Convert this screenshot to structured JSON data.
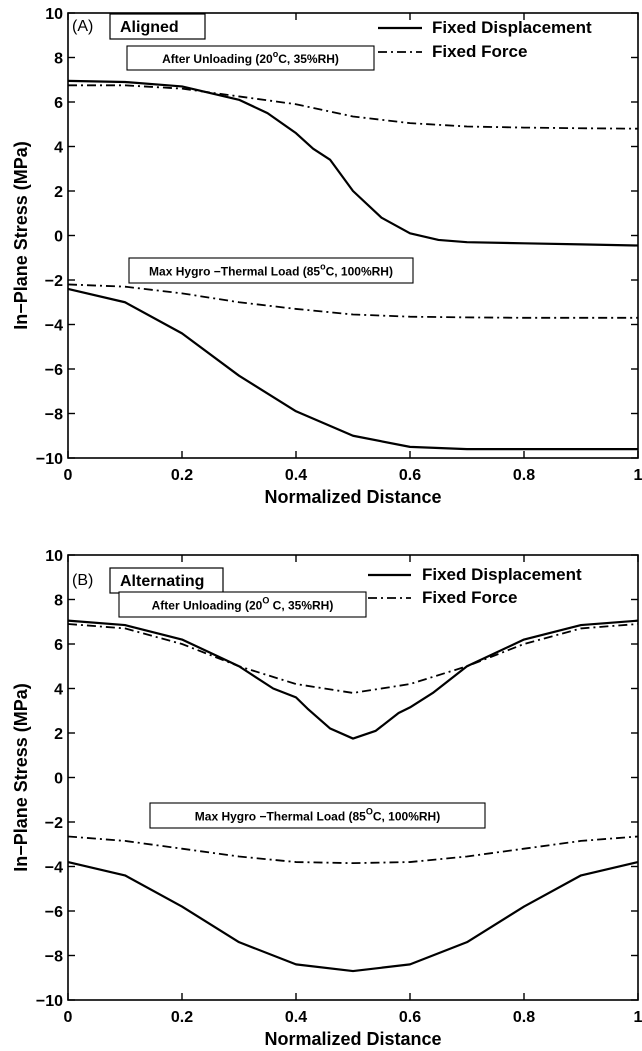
{
  "chart_data": [
    {
      "type": "line",
      "panel_tag": "(A)",
      "panel_title": "Aligned",
      "xlabel": "Normalized Distance",
      "ylabel": "In−Plane Stress (MPa)",
      "xlim": [
        0,
        1
      ],
      "ylim": [
        -10,
        10
      ],
      "xticks": [
        "0",
        "0.2",
        "0.4",
        "0.6",
        "0.8",
        "1"
      ],
      "yticks": [
        "−10",
        "−8",
        "−6",
        "−4",
        "−2",
        "0",
        "2",
        "4",
        "6",
        "8",
        "10"
      ],
      "legend": [
        "Fixed Displacement",
        "Fixed Force"
      ],
      "annotations": [
        {
          "pre": "After Unloading (20",
          "sup": "o",
          "post": "C, 35%RH)"
        },
        {
          "pre": "Max Hygro −Thermal Load (85",
          "sup": "o",
          "post": "C, 100%RH)"
        }
      ],
      "series": [
        {
          "name": "Fixed Displacement",
          "style": "solid",
          "x": [
            0,
            0.1,
            0.2,
            0.3,
            0.35,
            0.4,
            0.43,
            0.46,
            0.5,
            0.55,
            0.6,
            0.65,
            0.7,
            0.8,
            0.9,
            1.0
          ],
          "y": [
            6.95,
            6.9,
            6.7,
            6.1,
            5.5,
            4.6,
            3.9,
            3.4,
            2.0,
            0.8,
            0.1,
            -0.2,
            -0.3,
            -0.35,
            -0.4,
            -0.45
          ]
        },
        {
          "name": "Fixed Force",
          "style": "dashdot",
          "x": [
            0,
            0.1,
            0.2,
            0.3,
            0.4,
            0.5,
            0.6,
            0.7,
            0.8,
            0.9,
            1.0
          ],
          "y": [
            6.75,
            6.75,
            6.6,
            6.25,
            5.9,
            5.35,
            5.05,
            4.9,
            4.85,
            4.82,
            4.8
          ]
        },
        {
          "name": "Fixed Displacement",
          "style": "solid",
          "x": [
            0,
            0.1,
            0.2,
            0.3,
            0.4,
            0.5,
            0.6,
            0.7,
            0.8,
            0.9,
            1.0
          ],
          "y": [
            -2.4,
            -3.0,
            -4.4,
            -6.3,
            -7.9,
            -9.0,
            -9.5,
            -9.6,
            -9.6,
            -9.6,
            -9.6
          ]
        },
        {
          "name": "Fixed Force",
          "style": "dashdot",
          "x": [
            0,
            0.1,
            0.2,
            0.3,
            0.4,
            0.5,
            0.6,
            0.7,
            0.8,
            0.9,
            1.0
          ],
          "y": [
            -2.2,
            -2.3,
            -2.6,
            -3.0,
            -3.3,
            -3.55,
            -3.65,
            -3.68,
            -3.7,
            -3.7,
            -3.7
          ]
        }
      ]
    },
    {
      "type": "line",
      "panel_tag": "(B)",
      "panel_title": "Alternating",
      "xlabel": "Normalized Distance",
      "ylabel": "In−Plane Stress (MPa)",
      "xlim": [
        0,
        1
      ],
      "ylim": [
        -10,
        10
      ],
      "xticks": [
        "0",
        "0.2",
        "0.4",
        "0.6",
        "0.8",
        "1"
      ],
      "yticks": [
        "−10",
        "−8",
        "−6",
        "−4",
        "−2",
        "0",
        "2",
        "4",
        "6",
        "8",
        "10"
      ],
      "legend": [
        "Fixed Displacement",
        "Fixed Force"
      ],
      "annotations": [
        {
          "pre": "After Unloading (20",
          "sup": "O",
          "post": " C, 35%RH)"
        },
        {
          "pre": "Max Hygro −Thermal Load (85",
          "sup": "O",
          "post": "C, 100%RH)"
        }
      ],
      "series": [
        {
          "name": "Fixed Displacement",
          "style": "solid",
          "x": [
            0,
            0.1,
            0.2,
            0.3,
            0.36,
            0.4,
            0.42,
            0.46,
            0.5,
            0.54,
            0.58,
            0.6,
            0.64,
            0.7,
            0.8,
            0.9,
            1.0
          ],
          "y": [
            7.05,
            6.85,
            6.2,
            5.0,
            4.0,
            3.6,
            3.1,
            2.2,
            1.75,
            2.1,
            2.9,
            3.15,
            3.8,
            5.0,
            6.2,
            6.85,
            7.05
          ]
        },
        {
          "name": "Fixed Force",
          "style": "dashdot",
          "x": [
            0,
            0.1,
            0.2,
            0.3,
            0.4,
            0.5,
            0.6,
            0.7,
            0.8,
            0.9,
            1.0
          ],
          "y": [
            6.9,
            6.7,
            6.0,
            5.0,
            4.2,
            3.8,
            4.2,
            5.0,
            6.0,
            6.7,
            6.9
          ]
        },
        {
          "name": "Fixed Displacement",
          "style": "solid",
          "x": [
            0,
            0.1,
            0.2,
            0.3,
            0.4,
            0.5,
            0.6,
            0.7,
            0.8,
            0.9,
            1.0
          ],
          "y": [
            -3.8,
            -4.4,
            -5.8,
            -7.4,
            -8.4,
            -8.7,
            -8.4,
            -7.4,
            -5.8,
            -4.4,
            -3.8
          ]
        },
        {
          "name": "Fixed Force",
          "style": "dashdot",
          "x": [
            0,
            0.1,
            0.2,
            0.3,
            0.4,
            0.5,
            0.6,
            0.7,
            0.8,
            0.9,
            1.0
          ],
          "y": [
            -2.65,
            -2.85,
            -3.2,
            -3.55,
            -3.8,
            -3.85,
            -3.8,
            -3.55,
            -3.2,
            -2.85,
            -2.65
          ]
        }
      ]
    }
  ]
}
